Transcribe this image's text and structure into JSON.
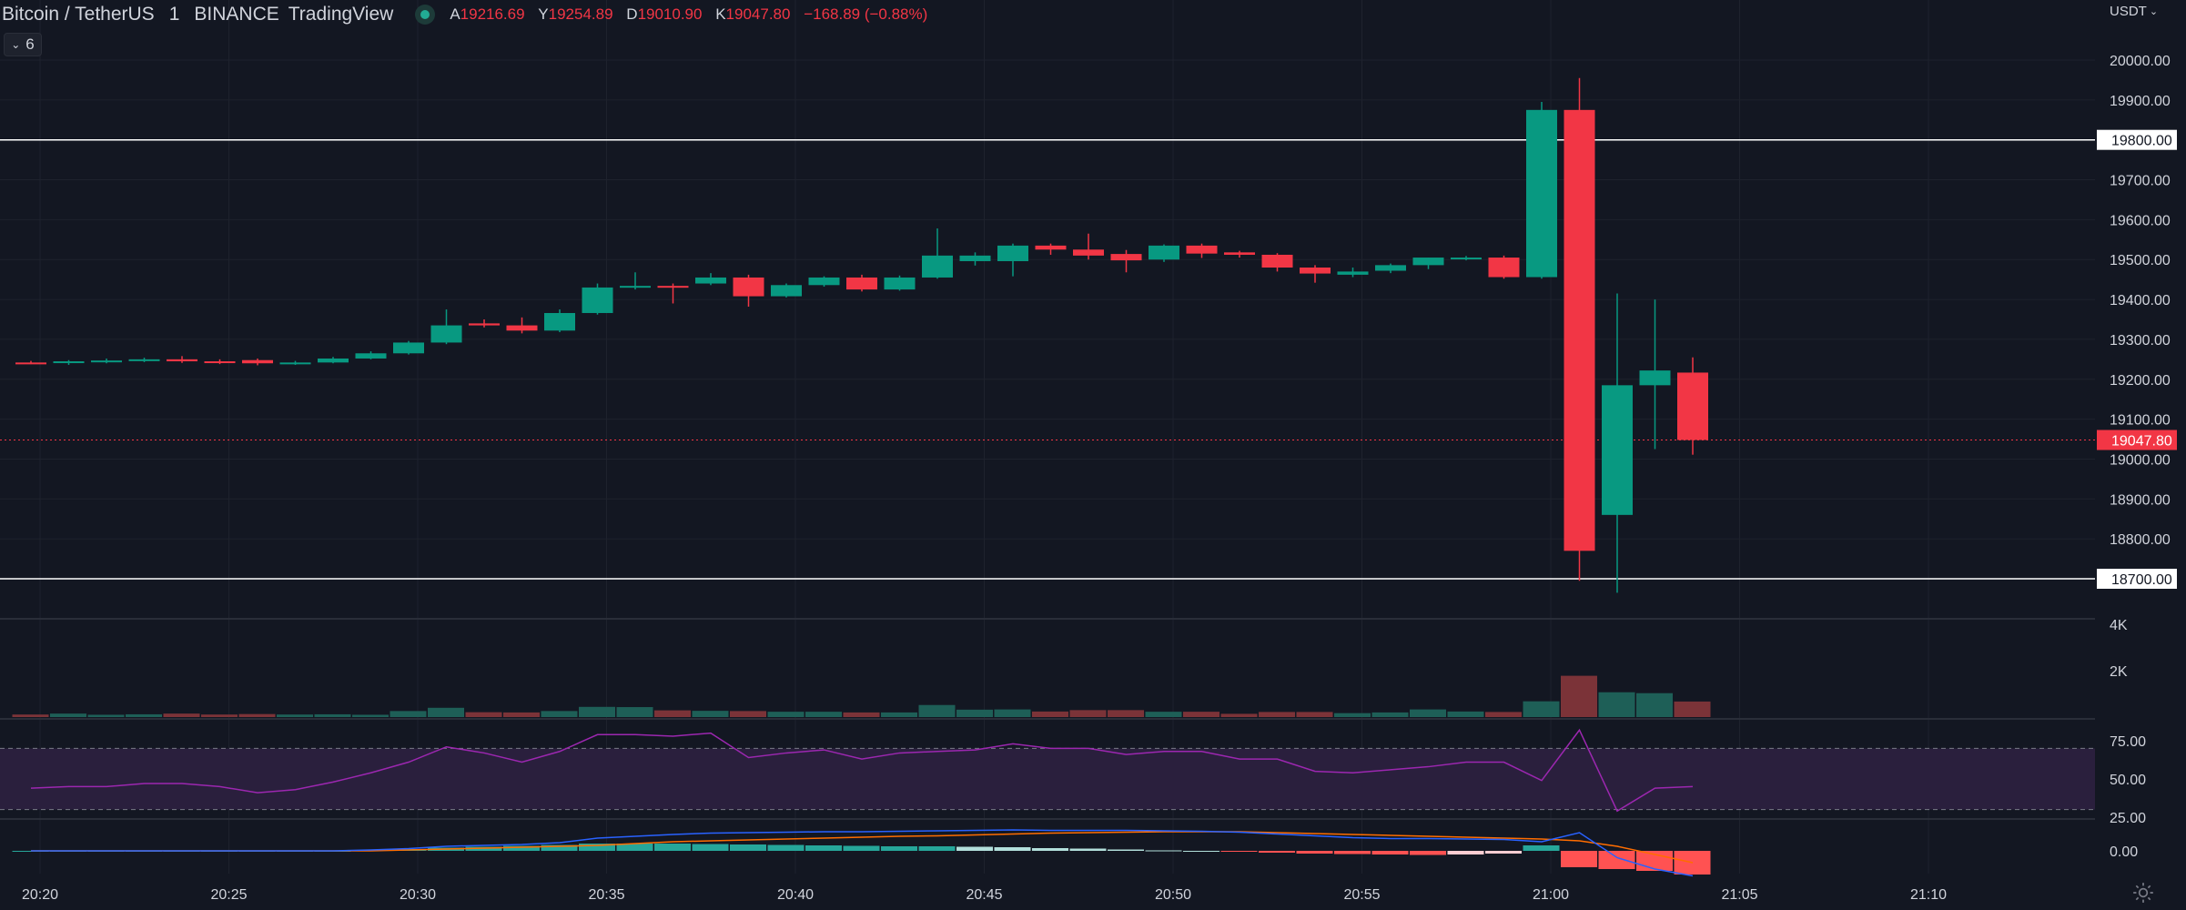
{
  "header": {
    "symbol": "Bitcoin / TetherUS",
    "interval": "1",
    "exchange": "BINANCE",
    "provider": "TradingView",
    "ohlc": {
      "open_label": "A",
      "open": "19216.69",
      "high_label": "Y",
      "high": "19254.89",
      "low_label": "D",
      "low": "19010.90",
      "close_label": "K",
      "close": "19047.80",
      "change": "−168.89 (−0.88%)"
    },
    "collapsed_count": "6",
    "currency": "USDT"
  },
  "colors": {
    "background": "#131722",
    "grid": "#1e222d",
    "up": "#089981",
    "down": "#f23645",
    "vol_up": "#1e5f57",
    "vol_down": "#7b3338",
    "rsi": "#9c27b0",
    "rsi_band": "#2a1f3d",
    "macd": "#2962ff",
    "signal": "#ff6d00",
    "text": "#d1d4dc",
    "hline": "#ffffff"
  },
  "chart_data": {
    "type": "candlestick",
    "x_ticks": [
      "20:20",
      "20:25",
      "20:30",
      "20:35",
      "20:40",
      "20:45",
      "20:50",
      "20:55",
      "21:00",
      "21:05",
      "21:10"
    ],
    "price_axis": {
      "ticks": [
        "20000.00",
        "19900.00",
        "19800.00",
        "19700.00",
        "19600.00",
        "19500.00",
        "19400.00",
        "19300.00",
        "19200.00",
        "19100.00",
        "19000.00",
        "18900.00",
        "18800.00",
        "18700.00"
      ],
      "range": [
        18615,
        20110
      ]
    },
    "last_price": 19047.8,
    "horizontal_lines": [
      19800.0,
      18700.0
    ],
    "candles": [
      {
        "t": "20:20",
        "o": 19242,
        "h": 19246,
        "l": 19238,
        "c": 19241
      },
      {
        "t": "20:21",
        "o": 19241,
        "h": 19248,
        "l": 19236,
        "c": 19245
      },
      {
        "t": "20:22",
        "o": 19245,
        "h": 19252,
        "l": 19240,
        "c": 19247
      },
      {
        "t": "20:23",
        "o": 19247,
        "h": 19254,
        "l": 19243,
        "c": 19250
      },
      {
        "t": "20:24",
        "o": 19250,
        "h": 19258,
        "l": 19241,
        "c": 19245
      },
      {
        "t": "20:25",
        "o": 19245,
        "h": 19250,
        "l": 19238,
        "c": 19243
      },
      {
        "t": "20:26",
        "o": 19248,
        "h": 19252,
        "l": 19235,
        "c": 19240
      },
      {
        "t": "20:27",
        "o": 19240,
        "h": 19246,
        "l": 19236,
        "c": 19242
      },
      {
        "t": "20:28",
        "o": 19242,
        "h": 19256,
        "l": 19240,
        "c": 19252
      },
      {
        "t": "20:29",
        "o": 19252,
        "h": 19270,
        "l": 19250,
        "c": 19265
      },
      {
        "t": "20:30",
        "o": 19265,
        "h": 19296,
        "l": 19262,
        "c": 19292
      },
      {
        "t": "20:31",
        "o": 19292,
        "h": 19375,
        "l": 19288,
        "c": 19335
      },
      {
        "t": "20:32",
        "o": 19340,
        "h": 19350,
        "l": 19330,
        "c": 19335
      },
      {
        "t": "20:33",
        "o": 19335,
        "h": 19355,
        "l": 19315,
        "c": 19322
      },
      {
        "t": "20:34",
        "o": 19322,
        "h": 19375,
        "l": 19318,
        "c": 19366
      },
      {
        "t": "20:35",
        "o": 19366,
        "h": 19440,
        "l": 19362,
        "c": 19430
      },
      {
        "t": "20:36",
        "o": 19430,
        "h": 19468,
        "l": 19425,
        "c": 19434
      },
      {
        "t": "20:37",
        "o": 19434,
        "h": 19440,
        "l": 19390,
        "c": 19430
      },
      {
        "t": "20:38",
        "o": 19440,
        "h": 19466,
        "l": 19436,
        "c": 19455
      },
      {
        "t": "20:39",
        "o": 19455,
        "h": 19462,
        "l": 19382,
        "c": 19408
      },
      {
        "t": "20:40",
        "o": 19408,
        "h": 19440,
        "l": 19405,
        "c": 19436
      },
      {
        "t": "20:41",
        "o": 19436,
        "h": 19458,
        "l": 19432,
        "c": 19455
      },
      {
        "t": "20:42",
        "o": 19455,
        "h": 19462,
        "l": 19420,
        "c": 19425
      },
      {
        "t": "20:43",
        "o": 19425,
        "h": 19460,
        "l": 19422,
        "c": 19455
      },
      {
        "t": "20:44",
        "o": 19455,
        "h": 19578,
        "l": 19452,
        "c": 19510
      },
      {
        "t": "20:45",
        "o": 19496,
        "h": 19518,
        "l": 19485,
        "c": 19510
      },
      {
        "t": "20:46",
        "o": 19496,
        "h": 19540,
        "l": 19458,
        "c": 19535
      },
      {
        "t": "20:47",
        "o": 19535,
        "h": 19540,
        "l": 19512,
        "c": 19525
      },
      {
        "t": "20:48",
        "o": 19525,
        "h": 19565,
        "l": 19500,
        "c": 19510
      },
      {
        "t": "20:49",
        "o": 19514,
        "h": 19524,
        "l": 19468,
        "c": 19498
      },
      {
        "t": "20:50",
        "o": 19500,
        "h": 19538,
        "l": 19494,
        "c": 19535
      },
      {
        "t": "20:51",
        "o": 19535,
        "h": 19540,
        "l": 19504,
        "c": 19515
      },
      {
        "t": "20:52",
        "o": 19518,
        "h": 19522,
        "l": 19505,
        "c": 19512
      },
      {
        "t": "20:53",
        "o": 19512,
        "h": 19516,
        "l": 19470,
        "c": 19480
      },
      {
        "t": "20:54",
        "o": 19480,
        "h": 19486,
        "l": 19442,
        "c": 19465
      },
      {
        "t": "20:55",
        "o": 19462,
        "h": 19480,
        "l": 19456,
        "c": 19470
      },
      {
        "t": "20:56",
        "o": 19472,
        "h": 19490,
        "l": 19466,
        "c": 19486
      },
      {
        "t": "20:57",
        "o": 19486,
        "h": 19505,
        "l": 19476,
        "c": 19505
      },
      {
        "t": "20:58",
        "o": 19504,
        "h": 19509,
        "l": 19498,
        "c": 19505
      },
      {
        "t": "20:59",
        "o": 19505,
        "h": 19510,
        "l": 19452,
        "c": 19456
      },
      {
        "t": "21:00",
        "o": 19456,
        "h": 19895,
        "l": 19452,
        "c": 19875
      },
      {
        "t": "21:01",
        "o": 19875,
        "h": 19955,
        "l": 18695,
        "c": 18770
      },
      {
        "t": "21:02",
        "o": 18860,
        "h": 19415,
        "l": 18665,
        "c": 19185
      },
      {
        "t": "21:03",
        "o": 19185,
        "h": 19400,
        "l": 19025,
        "c": 19222
      },
      {
        "t": "21:04",
        "o": 19216.69,
        "h": 19254.89,
        "l": 19010.9,
        "c": 19047.8
      }
    ],
    "volume": {
      "axis_ticks": [
        "4K",
        "2K"
      ],
      "values": [
        110,
        150,
        100,
        120,
        150,
        110,
        130,
        110,
        120,
        100,
        260,
        400,
        210,
        200,
        260,
        440,
        430,
        290,
        270,
        260,
        230,
        230,
        200,
        200,
        520,
        320,
        330,
        240,
        300,
        300,
        230,
        230,
        140,
        220,
        220,
        170,
        200,
        330,
        240,
        220,
        680,
        1780,
        1070,
        1030,
        670
      ]
    },
    "rsi": {
      "axis_ticks": [
        "75.00",
        "50.00",
        "25.00"
      ],
      "bands": [
        70,
        30
      ],
      "values": [
        44,
        45,
        45,
        47,
        47,
        45,
        41,
        43,
        48,
        54,
        61,
        71,
        67,
        61,
        68,
        79,
        79,
        78,
        80,
        64,
        67,
        69,
        63,
        67,
        68,
        69,
        73,
        70,
        70,
        66,
        68,
        68,
        63,
        63,
        55,
        54,
        56,
        58,
        61,
        61,
        49,
        82,
        29,
        44,
        45
      ]
    },
    "macd": {
      "axis_ticks": [
        "0.00"
      ],
      "macd_values": [
        0,
        0,
        0,
        0,
        0,
        0,
        0,
        0,
        0,
        2,
        5,
        10,
        12,
        14,
        18,
        28,
        32,
        36,
        39,
        40,
        41,
        42,
        42,
        43,
        44,
        45,
        46,
        45,
        45,
        45,
        44,
        43,
        41,
        37,
        33,
        29,
        27,
        27,
        26,
        25,
        20,
        40,
        -15,
        -40,
        -55
      ],
      "signal_values": [
        0,
        0,
        0,
        0,
        0,
        0,
        0,
        0,
        0,
        0,
        2,
        4,
        6,
        8,
        10,
        12,
        16,
        20,
        22,
        24,
        26,
        28,
        30,
        32,
        33,
        35,
        37,
        39,
        40,
        41,
        42,
        42,
        42,
        40,
        38,
        36,
        34,
        32,
        30,
        28,
        26,
        22,
        10,
        -8,
        -26
      ],
      "hist_values": [
        0,
        0,
        0,
        0,
        0,
        0,
        0,
        0,
        0,
        2,
        4,
        7,
        9,
        11,
        13,
        16,
        16,
        16,
        15,
        14,
        13,
        12,
        11,
        10,
        10,
        9,
        8,
        6,
        5,
        3,
        1,
        0,
        -2,
        -4,
        -6,
        -7,
        -8,
        -9,
        -8,
        -6,
        12,
        -36,
        -40,
        -44,
        -52
      ]
    }
  }
}
